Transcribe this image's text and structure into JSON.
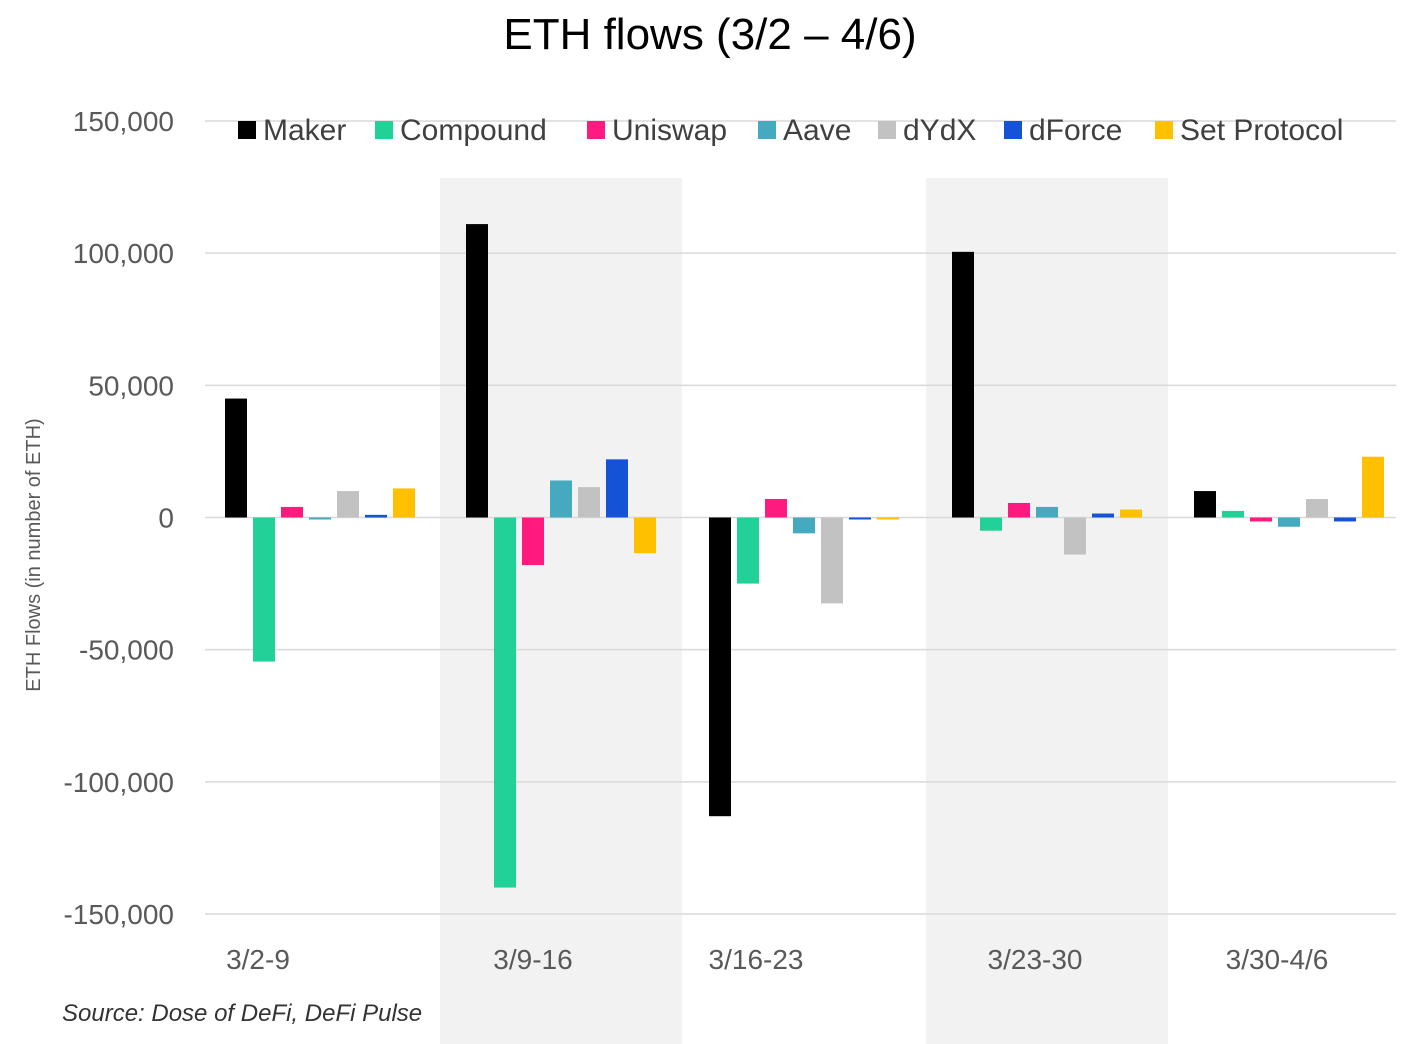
{
  "chart_data": {
    "type": "bar",
    "title": "ETH flows (3/2 – 4/6)",
    "ylabel": "ETH Flows (in number of ETH)",
    "xlabel": "",
    "ylim": [
      -150000,
      150000
    ],
    "yticks": [
      150000,
      100000,
      50000,
      0,
      -50000,
      -100000,
      -150000
    ],
    "ytick_labels": [
      "150,000",
      "100,000",
      "50,000",
      "0",
      "-50,000",
      "-100,000",
      "-150,000"
    ],
    "grid": true,
    "legend_position": "top",
    "categories": [
      "3/2-9",
      "3/9-16",
      "3/16-23",
      "3/23-30",
      "3/30-4/6"
    ],
    "shaded_categories": [
      1,
      3
    ],
    "series": [
      {
        "name": "Maker",
        "color": "#000000",
        "values": [
          45000,
          111000,
          -113000,
          100500,
          10000
        ]
      },
      {
        "name": "Compound",
        "color": "#22D197",
        "values": [
          -54500,
          -140000,
          -25000,
          -5000,
          2500
        ]
      },
      {
        "name": "Uniswap",
        "color": "#FF1A7F",
        "values": [
          4000,
          -18000,
          7000,
          5500,
          -1500
        ]
      },
      {
        "name": "Aave",
        "color": "#45A9BF",
        "values": [
          -500,
          14000,
          -6000,
          4000,
          -3500
        ]
      },
      {
        "name": "dYdX",
        "color": "#C2C2C2",
        "values": [
          10000,
          11500,
          -32500,
          -14000,
          7000
        ]
      },
      {
        "name": "dForce",
        "color": "#1452D6",
        "values": [
          1000,
          22000,
          -500,
          1500,
          -1500
        ]
      },
      {
        "name": "Set Protocol",
        "color": "#FFC000",
        "values": [
          11000,
          -13500,
          -500,
          3000,
          23000
        ]
      }
    ]
  },
  "source": "Source: Dose of DeFi, DeFi Pulse"
}
